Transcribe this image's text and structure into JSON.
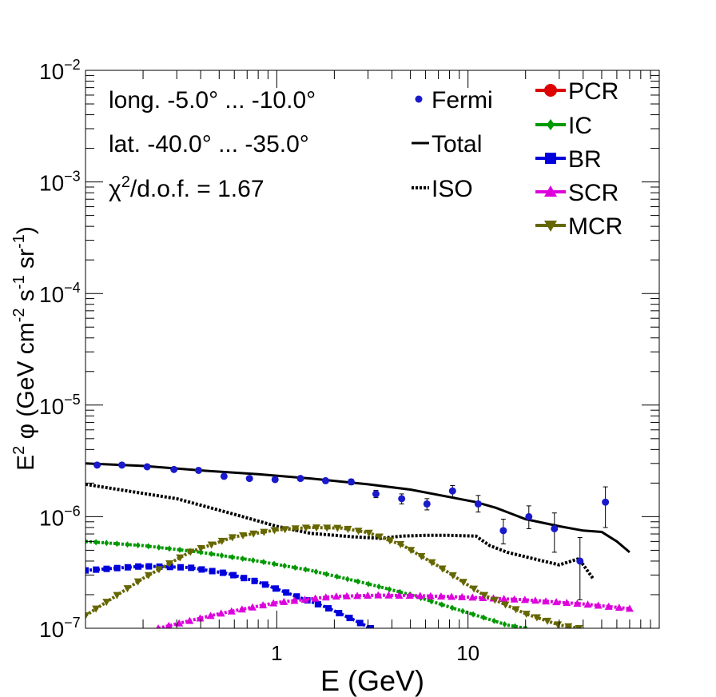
{
  "chart_data": {
    "type": "scatter",
    "x_scale": "log",
    "y_scale": "log",
    "xlim": [
      0.1,
      100
    ],
    "ylim": [
      1e-07,
      0.01
    ],
    "xlabel": "E (GeV)",
    "ylabel_parts": [
      "E",
      "2",
      " φ (GeV cm",
      "-2",
      " s",
      "-1",
      " sr",
      "-1",
      ")"
    ],
    "x_tick_labels": [
      {
        "value": 1,
        "label": "1"
      },
      {
        "value": 10,
        "label": "10"
      }
    ],
    "y_tick_labels": [
      {
        "value": 1e-07,
        "base": "10",
        "exp": "−7"
      },
      {
        "value": 1e-06,
        "base": "10",
        "exp": "−6"
      },
      {
        "value": 1e-05,
        "base": "10",
        "exp": "−5"
      },
      {
        "value": 0.0001,
        "base": "10",
        "exp": "−4"
      },
      {
        "value": 0.001,
        "base": "10",
        "exp": "−3"
      },
      {
        "value": 0.01,
        "base": "10",
        "exp": "−2"
      }
    ],
    "annotations": {
      "longitude": "long. -5.0° ... -10.0°",
      "latitude": "lat. -40.0° ... -35.0°",
      "chi2_symbol": "χ",
      "chi2_exp": "2",
      "chi2_rest": "/d.o.f. = 1.67"
    },
    "legend_left": [
      {
        "key": "fermi",
        "label": "Fermi",
        "color": "#1a1acc",
        "style": "dot"
      },
      {
        "key": "total",
        "label": "Total",
        "color": "#000000",
        "style": "solid"
      },
      {
        "key": "iso",
        "label": "ISO",
        "color": "#000000",
        "style": "dotted"
      }
    ],
    "legend_right": [
      {
        "key": "pcr",
        "label": "PCR",
        "color": "#dd0000",
        "marker": "circle"
      },
      {
        "key": "ic",
        "label": "IC",
        "color": "#009900",
        "marker": "diamond"
      },
      {
        "key": "br",
        "label": "BR",
        "color": "#0000dd",
        "marker": "square"
      },
      {
        "key": "scr",
        "label": "SCR",
        "color": "#dd00dd",
        "marker": "triangle-up"
      },
      {
        "key": "mcr",
        "label": "MCR",
        "color": "#666600",
        "marker": "triangle-down"
      }
    ],
    "fermi": {
      "name": "Fermi",
      "color": "#1a1acc",
      "points": [
        {
          "x": 0.115,
          "y": 2.9e-06,
          "err_lo": 1e-07,
          "err_hi": 1e-07
        },
        {
          "x": 0.155,
          "y": 2.9e-06,
          "err_lo": 1e-07,
          "err_hi": 1e-07
        },
        {
          "x": 0.21,
          "y": 2.8e-06,
          "err_lo": 1e-07,
          "err_hi": 1e-07
        },
        {
          "x": 0.29,
          "y": 2.65e-06,
          "err_lo": 1e-07,
          "err_hi": 1e-07
        },
        {
          "x": 0.39,
          "y": 2.6e-06,
          "err_lo": 1e-07,
          "err_hi": 1e-07
        },
        {
          "x": 0.53,
          "y": 2.3e-06,
          "err_lo": 1e-07,
          "err_hi": 1e-07
        },
        {
          "x": 0.72,
          "y": 2.2e-06,
          "err_lo": 1e-07,
          "err_hi": 1e-07
        },
        {
          "x": 0.98,
          "y": 2.15e-06,
          "err_lo": 1e-07,
          "err_hi": 1e-07
        },
        {
          "x": 1.33,
          "y": 2.2e-06,
          "err_lo": 1e-07,
          "err_hi": 1e-07
        },
        {
          "x": 1.8,
          "y": 2.1e-06,
          "err_lo": 1e-07,
          "err_hi": 1e-07
        },
        {
          "x": 2.45,
          "y": 2.05e-06,
          "err_lo": 1.2e-07,
          "err_hi": 1.2e-07
        },
        {
          "x": 3.3,
          "y": 1.6e-06,
          "err_lo": 1.2e-07,
          "err_hi": 1.2e-07
        },
        {
          "x": 4.5,
          "y": 1.45e-06,
          "err_lo": 1.5e-07,
          "err_hi": 1.5e-07
        },
        {
          "x": 6.1,
          "y": 1.3e-06,
          "err_lo": 1.5e-07,
          "err_hi": 1.5e-07
        },
        {
          "x": 8.3,
          "y": 1.7e-06,
          "err_lo": 2e-07,
          "err_hi": 2e-07
        },
        {
          "x": 11.3,
          "y": 1.3e-06,
          "err_lo": 2e-07,
          "err_hi": 2.5e-07
        },
        {
          "x": 15.3,
          "y": 7.5e-07,
          "err_lo": 1.8e-07,
          "err_hi": 2e-07
        },
        {
          "x": 20.8,
          "y": 1e-06,
          "err_lo": 2.2e-07,
          "err_hi": 2.5e-07
        },
        {
          "x": 28.3,
          "y": 7.8e-07,
          "err_lo": 3e-07,
          "err_hi": 3e-07
        },
        {
          "x": 38.5,
          "y": 4e-07,
          "err_lo": 2.2e-07,
          "err_hi": 2.5e-07
        },
        {
          "x": 52.3,
          "y": 1.35e-06,
          "err_lo": 5.5e-07,
          "err_hi": 5e-07
        }
      ]
    },
    "series": [
      {
        "key": "total",
        "name": "Total",
        "color": "#000000",
        "style": "solid",
        "marker": "none",
        "x": [
          0.1,
          0.2,
          0.4,
          0.8,
          1.5,
          3,
          5,
          8,
          11,
          14,
          20,
          30,
          40,
          50,
          60,
          70
        ],
        "y": [
          3e-06,
          2.85e-06,
          2.6e-06,
          2.4e-06,
          2.2e-06,
          1.95e-06,
          1.75e-06,
          1.5e-06,
          1.35e-06,
          1.2e-06,
          9.5e-07,
          8.2e-07,
          7.5e-07,
          7.3e-07,
          6e-07,
          4.8e-07
        ]
      },
      {
        "key": "iso",
        "name": "ISO",
        "color": "#000000",
        "style": "dotted",
        "marker": "none",
        "x": [
          0.1,
          0.3,
          0.6,
          1,
          1.5,
          2.5,
          3.5,
          4.5,
          6,
          8,
          11,
          13,
          16,
          22,
          30,
          38,
          45
        ],
        "y": [
          1.95e-06,
          1.45e-06,
          1.05e-06,
          8.2e-07,
          7.1e-07,
          6.6e-07,
          6.4e-07,
          6.7e-07,
          6.8e-07,
          6.8e-07,
          6.7e-07,
          5.5e-07,
          4.8e-07,
          4.2e-07,
          3.7e-07,
          4.2e-07,
          2.8e-07
        ]
      },
      {
        "key": "ic",
        "name": "IC",
        "color": "#009900",
        "style": "dotted",
        "marker": "diamond",
        "x": [
          0.1,
          0.2,
          0.4,
          0.8,
          1.5,
          3,
          5,
          8,
          12,
          16,
          20
        ],
        "y": [
          6e-07,
          5.5e-07,
          4.8e-07,
          4e-07,
          3.3e-07,
          2.5e-07,
          2e-07,
          1.55e-07,
          1.25e-07,
          1.07e-07,
          1e-07
        ]
      },
      {
        "key": "br",
        "name": "BR",
        "color": "#0000dd",
        "style": "dotted",
        "marker": "square",
        "x": [
          0.1,
          0.2,
          0.35,
          0.55,
          0.8,
          1.2,
          1.8,
          2.5,
          3.1
        ],
        "y": [
          3.3e-07,
          3.6e-07,
          3.5e-07,
          3.1e-07,
          2.6e-07,
          2e-07,
          1.55e-07,
          1.2e-07,
          1e-07
        ]
      },
      {
        "key": "scr",
        "name": "SCR",
        "color": "#dd00dd",
        "style": "dotted",
        "marker": "triangle-up",
        "x": [
          0.24,
          0.5,
          1,
          2,
          3.5,
          6,
          10,
          20,
          40,
          70
        ],
        "y": [
          1e-07,
          1.35e-07,
          1.7e-07,
          1.93e-07,
          1.98e-07,
          1.95e-07,
          1.9e-07,
          1.8e-07,
          1.65e-07,
          1.5e-07
        ]
      },
      {
        "key": "mcr",
        "name": "MCR",
        "color": "#666600",
        "style": "dotted",
        "marker": "triangle-down",
        "x": [
          0.1,
          0.2,
          0.35,
          0.6,
          1,
          1.5,
          2.2,
          3,
          4.5,
          7,
          12,
          20,
          30,
          38
        ],
        "y": [
          1.3e-07,
          2.8e-07,
          4.8e-07,
          6.6e-07,
          7.6e-07,
          8e-07,
          7.9e-07,
          7.2e-07,
          5.6e-07,
          3.6e-07,
          2e-07,
          1.35e-07,
          1.07e-07,
          1e-07
        ]
      }
    ]
  }
}
